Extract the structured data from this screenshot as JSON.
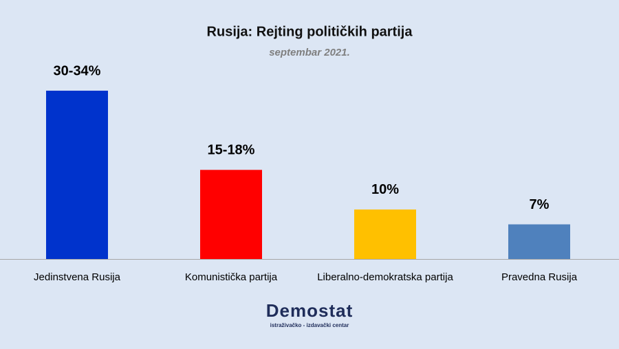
{
  "chart_data": {
    "type": "bar",
    "title": "Rusija: Rejting političkih partija",
    "subtitle": "septembar 2021.",
    "categories": [
      "Jedinstvena Rusija",
      "Komunistička partija",
      "Liberalno-demokratska partija",
      "Pravedna Rusija"
    ],
    "values": [
      34,
      18,
      10,
      7
    ],
    "value_labels": [
      "30-34%",
      "15-18%",
      "10%",
      "7%"
    ],
    "colors": [
      "#0033cc",
      "#ff0000",
      "#ffc000",
      "#4f81bd"
    ]
  },
  "logo": {
    "name": "Demostat",
    "tagline": "istraživačko - izdavački centar"
  }
}
